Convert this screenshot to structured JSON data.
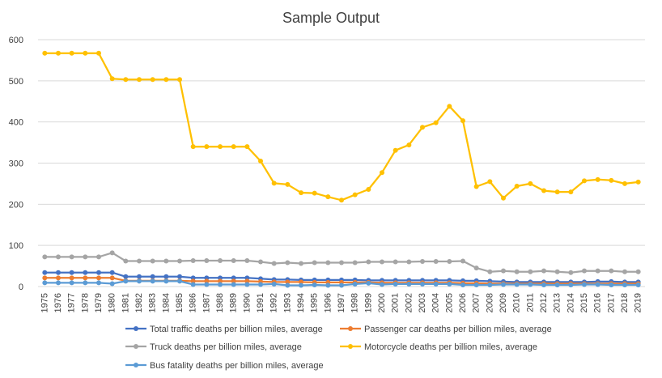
{
  "chart_data": {
    "type": "line",
    "title": "Sample Output",
    "xlabel": "",
    "ylabel": "",
    "ylim": [
      0,
      600
    ],
    "yticks": [
      0,
      100,
      200,
      300,
      400,
      500,
      600
    ],
    "grid": "horizontal",
    "legend_position": "bottom",
    "x": [
      "1975",
      "1976",
      "1977",
      "1978",
      "1979",
      "1980",
      "1981",
      "1982",
      "1983",
      "1984",
      "1985",
      "1986",
      "1987",
      "1988",
      "1989",
      "1990",
      "1991",
      "1992",
      "1993",
      "1994",
      "1995",
      "1996",
      "1997",
      "1998",
      "1999",
      "2000",
      "2001",
      "2002",
      "2003",
      "2004",
      "2005",
      "2006",
      "2007",
      "2008",
      "2009",
      "2010",
      "2011",
      "2012",
      "2013",
      "2014",
      "2015",
      "2016",
      "2017",
      "2018",
      "2019"
    ],
    "series": [
      {
        "name": "Total traffic deaths per billion miles, average",
        "color": "#4472C4",
        "values": [
          34,
          34,
          34,
          34,
          34,
          34,
          24,
          24,
          24,
          24,
          24,
          21,
          21,
          21,
          21,
          21,
          19,
          17,
          17,
          16,
          16,
          16,
          16,
          16,
          15,
          15,
          15,
          15,
          15,
          15,
          15,
          14,
          14,
          13,
          12,
          11,
          11,
          11,
          11,
          11,
          11,
          12,
          12,
          11,
          11
        ]
      },
      {
        "name": "Passenger car deaths per billion miles, average",
        "color": "#ED7D31",
        "values": [
          21,
          21,
          21,
          21,
          21,
          21,
          14,
          14,
          14,
          14,
          14,
          13,
          13,
          13,
          13,
          13,
          12,
          11,
          11,
          11,
          10,
          10,
          10,
          10,
          10,
          9,
          9,
          9,
          9,
          9,
          9,
          8,
          8,
          7,
          7,
          7,
          7,
          7,
          7,
          7,
          7,
          7,
          7,
          7,
          7
        ]
      },
      {
        "name": "Truck deaths per billion miles, average",
        "color": "#A5A5A5",
        "values": [
          72,
          72,
          72,
          72,
          72,
          82,
          62,
          62,
          62,
          62,
          62,
          63,
          63,
          63,
          63,
          63,
          60,
          56,
          58,
          56,
          58,
          58,
          58,
          58,
          60,
          60,
          60,
          60,
          61,
          61,
          61,
          62,
          45,
          36,
          38,
          36,
          36,
          38,
          36,
          34,
          38,
          38,
          38,
          36,
          36
        ]
      },
      {
        "name": "Motorcycle deaths per billion miles, average",
        "color": "#FFC000",
        "values": [
          567,
          567,
          567,
          567,
          567,
          505,
          503,
          503,
          503,
          503,
          503,
          340,
          340,
          340,
          340,
          340,
          305,
          251,
          248,
          228,
          227,
          218,
          210,
          223,
          236,
          277,
          331,
          344,
          387,
          398,
          438,
          403,
          243,
          255,
          215,
          244,
          250,
          233,
          230,
          230,
          257,
          260,
          258,
          250,
          254
        ]
      },
      {
        "name": "Bus  fatality  deaths per billion miles, average",
        "color": "#5B9BD5",
        "values": [
          9,
          9,
          9,
          9,
          9,
          7,
          13,
          13,
          13,
          13,
          13,
          5,
          5,
          5,
          5,
          5,
          5,
          6,
          3,
          3,
          4,
          3,
          3,
          6,
          8,
          5,
          6,
          6,
          6,
          6,
          6,
          4,
          4,
          4,
          5,
          5,
          5,
          4,
          4,
          4,
          5,
          5,
          4,
          4,
          4
        ]
      }
    ]
  }
}
